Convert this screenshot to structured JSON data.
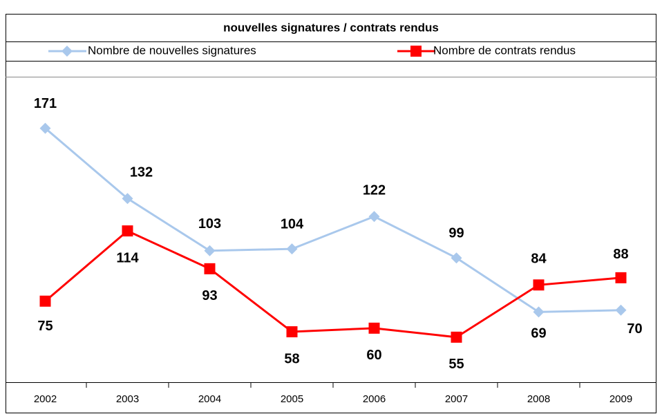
{
  "chart_data": {
    "type": "line",
    "title": "nouvelles signatures / contrats rendus",
    "categories": [
      "2002",
      "2003",
      "2004",
      "2005",
      "2006",
      "2007",
      "2008",
      "2009"
    ],
    "series": [
      {
        "name": "Nombre de nouvelles signatures",
        "color": "#a9c8ec",
        "marker": "diamond",
        "values": [
          171,
          132,
          103,
          104,
          122,
          99,
          69,
          70
        ]
      },
      {
        "name": "Nombre de contrats rendus",
        "color": "#ff0000",
        "marker": "square",
        "values": [
          75,
          114,
          93,
          58,
          60,
          55,
          84,
          88
        ]
      }
    ],
    "ylim": [
      30,
      200
    ],
    "grid": false
  }
}
